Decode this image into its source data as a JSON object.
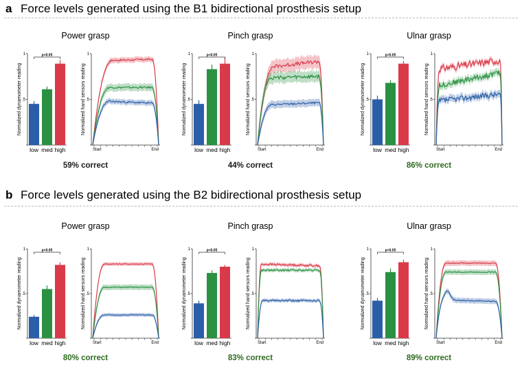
{
  "colors": {
    "low": "#2b5ea8",
    "med": "#2a9142",
    "high": "#d93a4a",
    "correct_good": "#2e6b1f",
    "correct_base": "#1a1a1a",
    "divider": "#b5b5b5"
  },
  "sections": [
    {
      "letter": "a",
      "title": "Force levels generated using the B1 bidirectional prosthesis setup",
      "panels": [
        {
          "grasp": "Power grasp",
          "correct": "59% correct",
          "highlight": false
        },
        {
          "grasp": "Pinch grasp",
          "correct": "44% correct",
          "highlight": false
        },
        {
          "grasp": "Ulnar grasp",
          "correct": "86% correct",
          "highlight": true
        }
      ]
    },
    {
      "letter": "b",
      "title": "Force levels generated using the B2 bidirectional prosthesis setup",
      "panels": [
        {
          "grasp": "Power grasp",
          "correct": "80% correct",
          "highlight": true
        },
        {
          "grasp": "Pinch grasp",
          "correct": "83% correct",
          "highlight": true
        },
        {
          "grasp": "Ulnar grasp",
          "correct": "89% correct",
          "highlight": true
        }
      ]
    }
  ],
  "chart_data": [
    {
      "section": "a",
      "grasp": "Power grasp",
      "type": "bar",
      "categories": [
        "low",
        "med",
        "high"
      ],
      "values": [
        0.45,
        0.61,
        0.89
      ],
      "errors": [
        0.03,
        0.03,
        0.04
      ],
      "ylabel": "Normalized dynamometer reading",
      "yticks": [
        "1",
        ".5",
        "0"
      ],
      "ylim": [
        0,
        1
      ],
      "significance": "p<0.05"
    },
    {
      "section": "a",
      "grasp": "Power grasp",
      "type": "line",
      "xlabels": [
        "Start",
        "End"
      ],
      "ylabel": "Normalized hand sensors reading",
      "yticks": [
        "1",
        ".5",
        "0"
      ],
      "ylim": [
        0,
        1
      ],
      "series": [
        {
          "name": "low",
          "plateau": 0.47,
          "band": 0.03,
          "noise": 0.01,
          "rise": 0.26,
          "fall": 0.1,
          "drift": -0.03
        },
        {
          "name": "med",
          "plateau": 0.63,
          "band": 0.04,
          "noise": 0.01,
          "rise": 0.26,
          "fall": 0.1,
          "drift": 0.0
        },
        {
          "name": "high",
          "plateau": 0.93,
          "band": 0.03,
          "noise": 0.01,
          "rise": 0.3,
          "fall": 0.1,
          "drift": 0.02
        }
      ]
    },
    {
      "section": "a",
      "grasp": "Pinch grasp",
      "type": "bar",
      "categories": [
        "low",
        "med",
        "high"
      ],
      "values": [
        0.45,
        0.83,
        0.89
      ],
      "errors": [
        0.04,
        0.05,
        0.07
      ],
      "ylabel": "Normalized dynamometer reading",
      "yticks": [
        "1",
        ".5",
        "0"
      ],
      "ylim": [
        0,
        1
      ],
      "significance": "p<0.05"
    },
    {
      "section": "a",
      "grasp": "Pinch grasp",
      "type": "line",
      "xlabels": [
        "Start",
        "End"
      ],
      "ylabel": "Normalized hand sensors reading",
      "yticks": [
        "1",
        ".5",
        "0"
      ],
      "ylim": [
        0,
        1
      ],
      "series": [
        {
          "name": "low",
          "plateau": 0.45,
          "band": 0.04,
          "noise": 0.01,
          "rise": 0.22,
          "fall": 0.07,
          "drift": 0.03
        },
        {
          "name": "med",
          "plateau": 0.74,
          "band": 0.06,
          "noise": 0.02,
          "rise": 0.2,
          "fall": 0.07,
          "drift": 0.02
        },
        {
          "name": "high",
          "plateau": 0.88,
          "band": 0.07,
          "noise": 0.02,
          "rise": 0.25,
          "fall": 0.07,
          "drift": 0.08
        }
      ]
    },
    {
      "section": "a",
      "grasp": "Ulnar grasp",
      "type": "bar",
      "categories": [
        "low",
        "med",
        "high"
      ],
      "values": [
        0.5,
        0.68,
        0.89
      ],
      "errors": [
        0.04,
        0.03,
        0.03
      ],
      "ylabel": "Normalized dynamometer reading",
      "yticks": [
        "1",
        ".5",
        "0"
      ],
      "ylim": [
        0,
        1
      ],
      "significance": "p<0.05"
    },
    {
      "section": "a",
      "grasp": "Ulnar grasp",
      "type": "line",
      "xlabels": [
        "Start",
        "End"
      ],
      "ylabel": "Normalized hand sensors reading",
      "yticks": [
        "1",
        ".5",
        "0"
      ],
      "ylim": [
        0,
        1
      ],
      "series": [
        {
          "name": "low",
          "plateau": 0.52,
          "band": 0.04,
          "noise": 0.03,
          "rise": 0.05,
          "fall": 0.03,
          "drift": 0.08
        },
        {
          "name": "med",
          "plateau": 0.72,
          "band": 0.04,
          "noise": 0.03,
          "rise": 0.05,
          "fall": 0.03,
          "drift": 0.15
        },
        {
          "name": "high",
          "plateau": 0.88,
          "band": 0.03,
          "noise": 0.04,
          "rise": 0.05,
          "fall": 0.03,
          "drift": 0.1
        }
      ]
    },
    {
      "section": "b",
      "grasp": "Power grasp",
      "type": "bar",
      "categories": [
        "low",
        "med",
        "high"
      ],
      "values": [
        0.24,
        0.55,
        0.82
      ],
      "errors": [
        0.02,
        0.04,
        0.03
      ],
      "ylabel": "Normalized dynamometer reading",
      "yticks": [
        "1",
        ".5",
        "0"
      ],
      "ylim": [
        0,
        1
      ],
      "significance": "p<0.05"
    },
    {
      "section": "b",
      "grasp": "Power grasp",
      "type": "line",
      "xlabels": [
        "Start",
        "End"
      ],
      "ylabel": "Normalized hand sensors reading",
      "yticks": [
        "1",
        ".5",
        "0"
      ],
      "ylim": [
        0,
        1
      ],
      "series": [
        {
          "name": "low",
          "plateau": 0.26,
          "band": 0.02,
          "noise": 0.005,
          "rise": 0.18,
          "fall": 0.1,
          "drift": 0.0
        },
        {
          "name": "med",
          "plateau": 0.57,
          "band": 0.03,
          "noise": 0.005,
          "rise": 0.18,
          "fall": 0.1,
          "drift": 0.0
        },
        {
          "name": "high",
          "plateau": 0.83,
          "band": 0.02,
          "noise": 0.005,
          "rise": 0.18,
          "fall": 0.1,
          "drift": 0.0
        }
      ]
    },
    {
      "section": "b",
      "grasp": "Pinch grasp",
      "type": "bar",
      "categories": [
        "low",
        "med",
        "high"
      ],
      "values": [
        0.39,
        0.73,
        0.8
      ],
      "errors": [
        0.03,
        0.03,
        0.02
      ],
      "ylabel": "Normalized dynamometer reading",
      "yticks": [
        "1",
        ".5",
        "0"
      ],
      "ylim": [
        0,
        1
      ],
      "significance": "p<0.05"
    },
    {
      "section": "b",
      "grasp": "Pinch grasp",
      "type": "line",
      "xlabels": [
        "Start",
        "End"
      ],
      "ylabel": "Normalized hand sensors reading",
      "yticks": [
        "1",
        ".5",
        "0"
      ],
      "ylim": [
        0,
        1
      ],
      "series": [
        {
          "name": "low",
          "plateau": 0.42,
          "band": 0.02,
          "noise": 0.01,
          "rise": 0.08,
          "fall": 0.06,
          "drift": 0.0
        },
        {
          "name": "med",
          "plateau": 0.76,
          "band": 0.02,
          "noise": 0.01,
          "rise": 0.06,
          "fall": 0.06,
          "drift": 0.0
        },
        {
          "name": "high",
          "plateau": 0.82,
          "band": 0.02,
          "noise": 0.01,
          "rise": 0.06,
          "fall": 0.06,
          "drift": -0.02
        }
      ]
    },
    {
      "section": "b",
      "grasp": "Ulnar grasp",
      "type": "bar",
      "categories": [
        "low",
        "med",
        "high"
      ],
      "values": [
        0.42,
        0.74,
        0.85
      ],
      "errors": [
        0.03,
        0.04,
        0.03
      ],
      "ylabel": "Normalized dynamometer reading",
      "yticks": [
        "1",
        ".5",
        "0"
      ],
      "ylim": [
        0,
        1
      ],
      "significance": "p<0.05"
    },
    {
      "section": "b",
      "grasp": "Ulnar grasp",
      "type": "line",
      "xlabels": [
        "Start",
        "End"
      ],
      "ylabel": "Normalized hand sensors reading",
      "yticks": [
        "1",
        ".5",
        "0"
      ],
      "ylim": [
        0,
        1
      ],
      "series": [
        {
          "name": "low",
          "plateau": 0.42,
          "band": 0.03,
          "noise": 0.005,
          "rise": 0.12,
          "fall": 0.1,
          "drift": -0.02,
          "peak": 0.1
        },
        {
          "name": "med",
          "plateau": 0.74,
          "band": 0.03,
          "noise": 0.005,
          "rise": 0.15,
          "fall": 0.1,
          "drift": 0.0
        },
        {
          "name": "high",
          "plateau": 0.84,
          "band": 0.03,
          "noise": 0.005,
          "rise": 0.15,
          "fall": 0.1,
          "drift": 0.0
        }
      ]
    }
  ]
}
